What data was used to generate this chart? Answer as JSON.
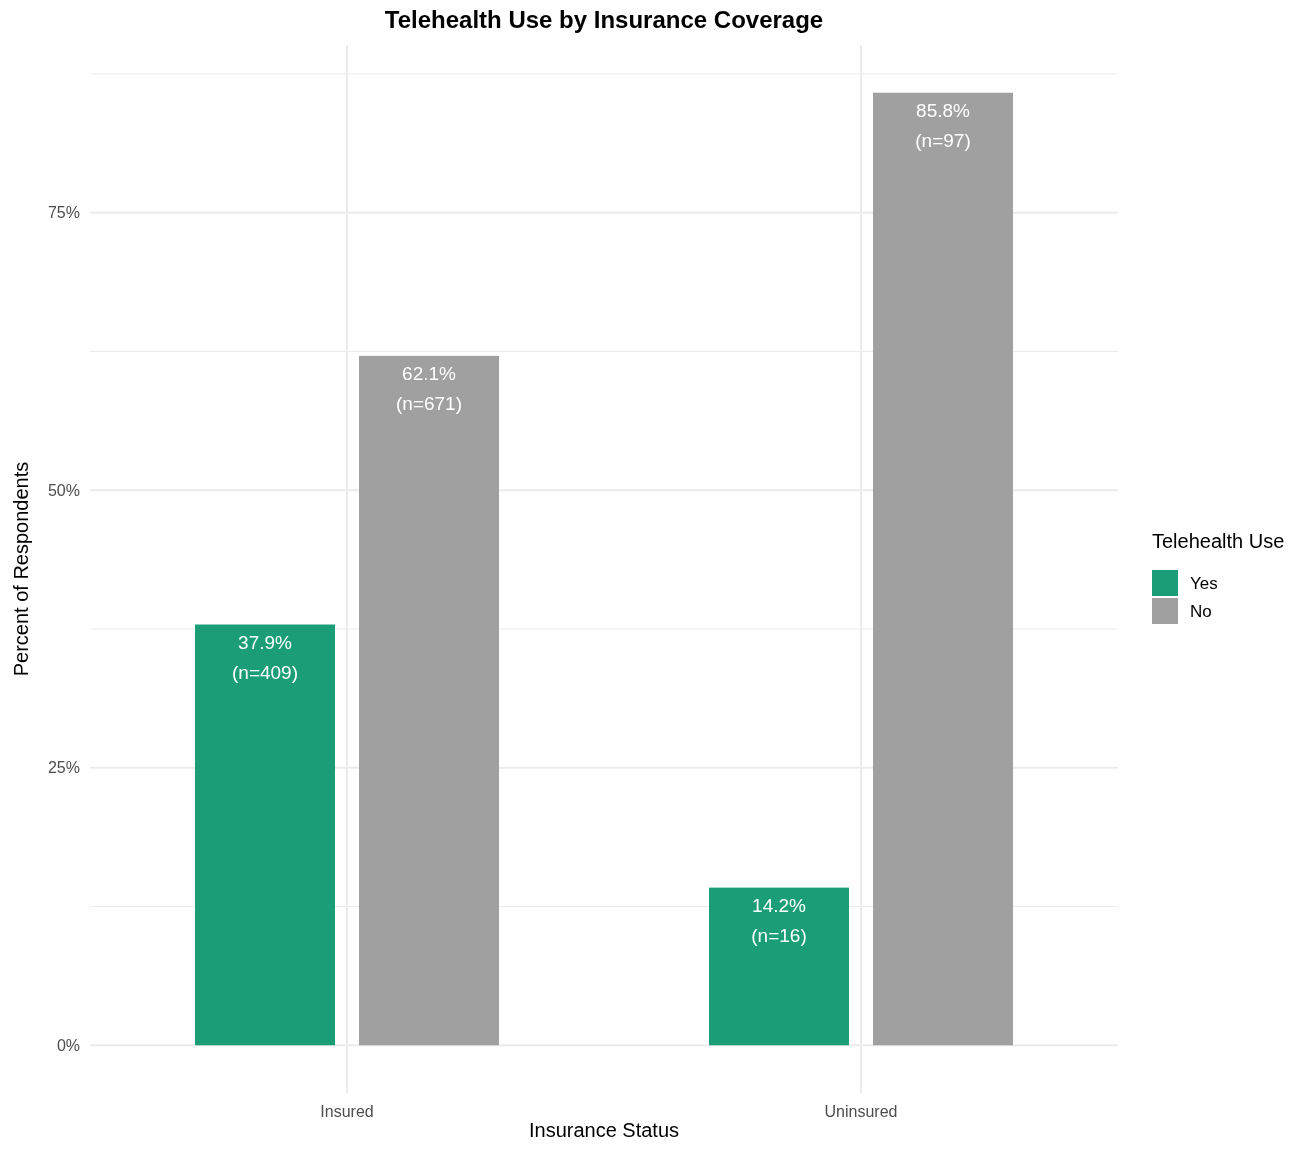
{
  "chart_data": {
    "type": "bar",
    "title": "Telehealth Use by Insurance Coverage",
    "xlabel": "Insurance Status",
    "ylabel": "Percent of Respondents",
    "legend_title": "Telehealth Use",
    "categories": [
      "Insured",
      "Uninsured"
    ],
    "series": [
      {
        "name": "Yes",
        "color": "#1b9e77",
        "values": [
          37.9,
          14.2
        ],
        "value_labels": [
          "37.9%\n(n=409)",
          "14.2%\n(n=16)"
        ]
      },
      {
        "name": "No",
        "color": "#a0a0a0",
        "values": [
          62.1,
          85.8
        ],
        "value_labels": [
          "62.1%\n(n=671)",
          "85.8%\n(n=97)"
        ]
      }
    ],
    "ylim": [
      -4.3,
      90.1
    ],
    "yticks": [
      {
        "value": 0,
        "label": "0%"
      },
      {
        "value": 12.5,
        "label": null
      },
      {
        "value": 25,
        "label": "25%"
      },
      {
        "value": 37.5,
        "label": null
      },
      {
        "value": 50,
        "label": "50%"
      },
      {
        "value": 62.5,
        "label": null
      },
      {
        "value": 75,
        "label": "75%"
      },
      {
        "value": 87.5,
        "label": null
      }
    ],
    "grid": true,
    "legend": "right"
  }
}
